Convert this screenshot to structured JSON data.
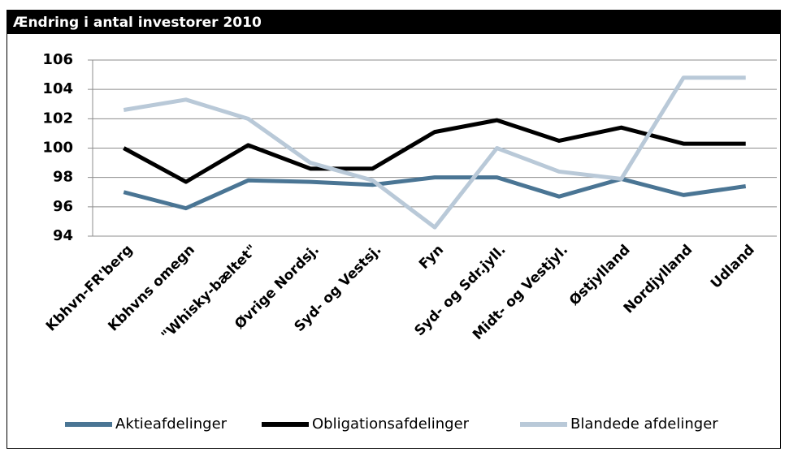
{
  "chart_data": {
    "type": "line",
    "title": "Ændring i antal investorer 2010",
    "categories": [
      "Kbhvn-FR'berg",
      "Kbhvns omegn",
      "\"Whisky-bæltet\"",
      "Øvrige Nordsj.",
      "Syd- og Vestsj.",
      "Fyn",
      "Syd- og Sdr.jyll.",
      "Midt- og Vestjyl.",
      "Østjylland",
      "Nordjylland",
      "Udland"
    ],
    "series": [
      {
        "name": "Aktieafdelinger",
        "color": "#4a7594",
        "values": [
          97.0,
          95.9,
          97.8,
          97.7,
          97.5,
          98.0,
          98.0,
          96.7,
          97.9,
          96.8,
          97.4
        ]
      },
      {
        "name": "Obligationsafdelinger",
        "color": "#000000",
        "values": [
          100.0,
          97.7,
          100.2,
          98.6,
          98.6,
          101.1,
          101.9,
          100.5,
          101.4,
          100.3,
          100.3
        ]
      },
      {
        "name": "Blandede afdelinger",
        "color": "#b9c9d8",
        "values": [
          102.6,
          103.3,
          102.0,
          99.0,
          97.8,
          94.6,
          100.0,
          98.4,
          97.9,
          104.8,
          104.8
        ]
      }
    ],
    "ylim": [
      94,
      106
    ],
    "yticks": [
      94,
      96,
      98,
      100,
      102,
      104,
      106
    ],
    "grid": true,
    "legend": "bottom"
  }
}
